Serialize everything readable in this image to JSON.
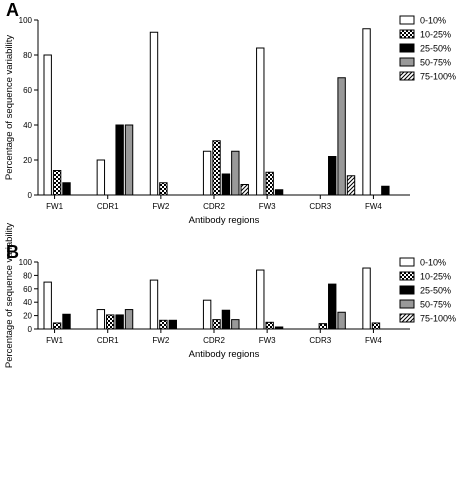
{
  "chart_data": [
    {
      "type": "bar",
      "panel_label": "A",
      "categories": [
        "FW1",
        "CDR1",
        "FW2",
        "CDR2",
        "FW3",
        "CDR3",
        "FW4"
      ],
      "xlabel": "Antibody regions",
      "ylabel": "Percentage of sequence variability",
      "ylim": [
        0,
        100
      ],
      "yticks": [
        0,
        20,
        40,
        60,
        80,
        100
      ],
      "grid": false,
      "legend_position": "top-right",
      "series": [
        {
          "name": "0-10%",
          "pattern": "white",
          "values": [
            80,
            20,
            93,
            25,
            84,
            0,
            95
          ]
        },
        {
          "name": "10-25%",
          "pattern": "checker",
          "values": [
            14,
            0,
            7,
            31,
            13,
            0,
            0
          ]
        },
        {
          "name": "25-50%",
          "pattern": "black",
          "values": [
            7,
            40,
            0,
            12,
            3,
            22,
            5
          ]
        },
        {
          "name": "50-75%",
          "pattern": "gray",
          "values": [
            0,
            40,
            0,
            25,
            0,
            67,
            0
          ]
        },
        {
          "name": "75-100%",
          "pattern": "hatch",
          "values": [
            0,
            0,
            0,
            6,
            0,
            11,
            0
          ]
        }
      ]
    },
    {
      "type": "bar",
      "panel_label": "B",
      "categories": [
        "FW1",
        "CDR1",
        "FW2",
        "CDR2",
        "FW3",
        "CDR3",
        "FW4"
      ],
      "xlabel": "Antibody regions",
      "ylabel": "Percentage of sequence variability",
      "ylim": [
        0,
        100
      ],
      "yticks": [
        0,
        20,
        40,
        60,
        80,
        100
      ],
      "grid": false,
      "legend_position": "top-right",
      "series": [
        {
          "name": "0-10%",
          "pattern": "white",
          "values": [
            70,
            29,
            73,
            43,
            88,
            0,
            91
          ]
        },
        {
          "name": "10-25%",
          "pattern": "checker",
          "values": [
            9,
            21,
            13,
            14,
            10,
            8,
            9
          ]
        },
        {
          "name": "25-50%",
          "pattern": "black",
          "values": [
            22,
            21,
            13,
            28,
            3,
            67,
            0
          ]
        },
        {
          "name": "50-75%",
          "pattern": "gray",
          "values": [
            0,
            29,
            0,
            14,
            0,
            25,
            0
          ]
        },
        {
          "name": "75-100%",
          "pattern": "hatch",
          "values": [
            0,
            0,
            0,
            0,
            0,
            0,
            0
          ]
        }
      ]
    }
  ]
}
